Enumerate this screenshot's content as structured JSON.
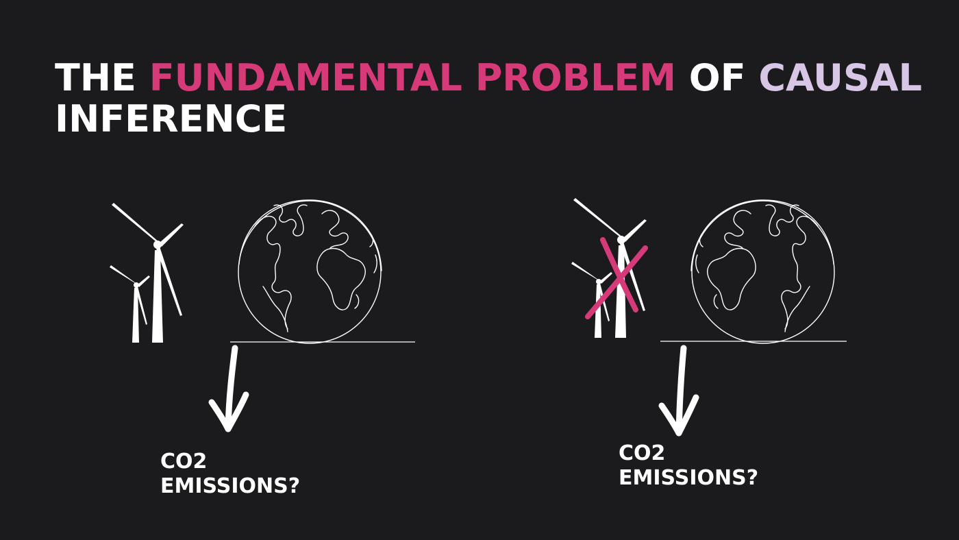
{
  "title": {
    "part1": "THE ",
    "part2": "FUNDAMENTAL PROBLEM",
    "part3": " OF ",
    "part4": "CAUSAL",
    "line2": "INFERENCE"
  },
  "colors": {
    "background": "#1b1b1d",
    "highlight_pink": "#d63a78",
    "highlight_lavender": "#d8c6e6",
    "text": "#ffffff"
  },
  "scenarios": [
    {
      "icons": [
        "wind-turbine-icon",
        "globe-icon",
        "down-arrow-icon"
      ],
      "label_line1": "CO2",
      "label_line2": "EMISSIONS?"
    },
    {
      "icons": [
        "wind-turbine-icon",
        "cross-icon",
        "globe-icon",
        "down-arrow-icon"
      ],
      "label_line1": "CO2",
      "label_line2": "EMISSIONS?"
    }
  ]
}
